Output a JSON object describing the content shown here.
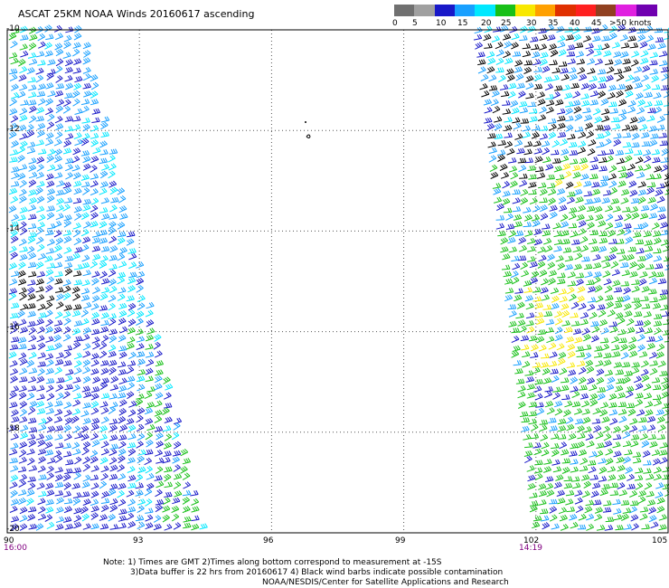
{
  "title": "ASCAT 25KM NOAA Winds 20160617 ascending",
  "legend": {
    "labels": [
      "0",
      "5",
      "10",
      "15",
      "20",
      "25",
      "30",
      "35",
      "40",
      "45",
      ">50 knots"
    ],
    "colors": [
      "#707070",
      "#a0a0a0",
      "#1818c8",
      "#18a0ff",
      "#00e8ff",
      "#18c018",
      "#f8e800",
      "#ffa000",
      "#e03000",
      "#ff2020",
      "#904020",
      "#e020e0",
      "#7000b0"
    ]
  },
  "axes": {
    "lat_labels": [
      "-10",
      "-12",
      "-14",
      "-16",
      "-18",
      "-20"
    ],
    "lon_labels": [
      "90",
      "93",
      "96",
      "99",
      "102",
      "105"
    ]
  },
  "swaths": {
    "left_time": "16:00",
    "right_time": "14:19"
  },
  "notes": [
    "Note: 1) Times are GMT 2)Times along bottom correspond to measurement at -15S",
    "3)Data buffer is 22 hrs from 20160617 4) Black wind barbs indicate possible contamination",
    "NOAA/NESDIS/Center for Satellite Applications and Research"
  ]
}
